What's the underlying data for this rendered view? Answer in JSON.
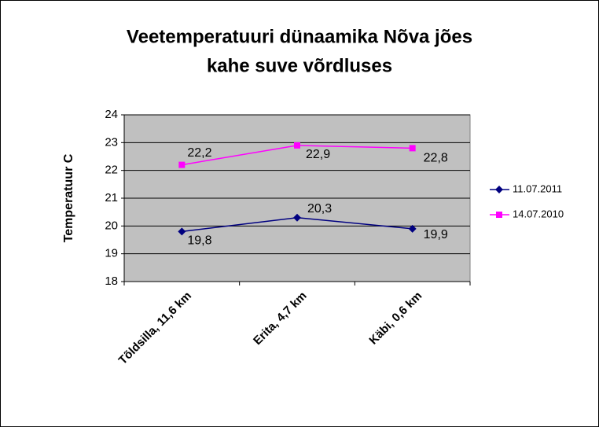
{
  "chart_data": {
    "type": "line",
    "title": [
      "Veetemperatuuri dünaamika Nõva jões",
      "kahe suve võrdluses"
    ],
    "y_label": "Temperatuur C",
    "categories": [
      "Tõldsilla, 11,6 km",
      "Erita, 4,7 km",
      "Käbi, 0,6 km"
    ],
    "series": [
      {
        "name": "11.07.2011",
        "color": "#000080",
        "marker": "diamond",
        "values": [
          19.8,
          20.3,
          19.9
        ],
        "value_labels": [
          "19,8",
          "20,3",
          "19,9"
        ]
      },
      {
        "name": "14.07.2010",
        "color": "#ff00ff",
        "marker": "square",
        "values": [
          22.2,
          22.9,
          22.8
        ],
        "value_labels": [
          "22,2",
          "22,9",
          "22,8"
        ]
      }
    ],
    "ylim": [
      18,
      24
    ],
    "yticks": [
      18,
      19,
      20,
      21,
      22,
      23,
      24
    ],
    "grid": true,
    "legend": "right"
  }
}
